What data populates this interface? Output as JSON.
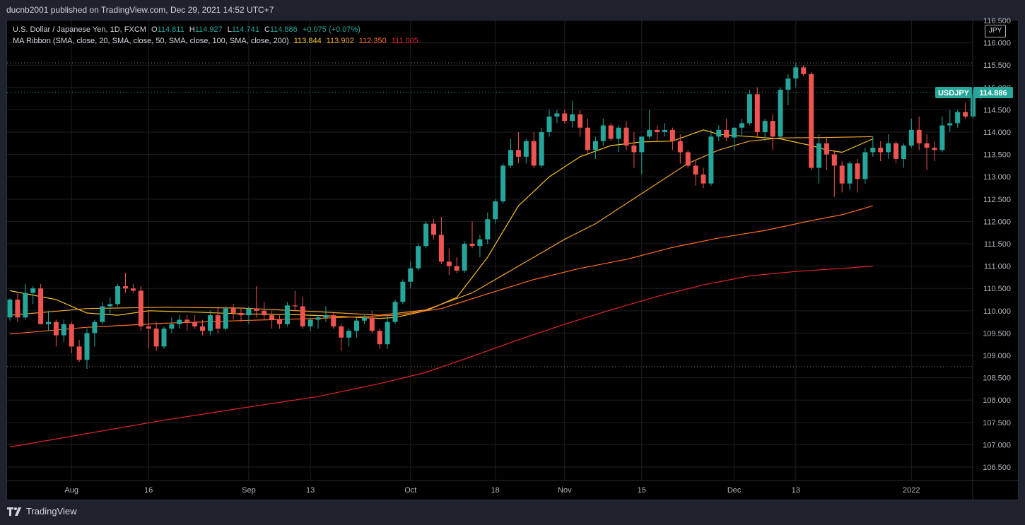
{
  "header": {
    "published": "ducnb2001 published on TradingView.com, Dec 29, 2021 14:52 UTC+7"
  },
  "legend": {
    "symbol_line": "U.S. Dollar / Japanese Yen, 1D, FXCM",
    "o_label": "O",
    "o": "114.811",
    "h_label": "H",
    "h": "114.927",
    "l_label": "L",
    "l": "114.741",
    "c_label": "C",
    "c": "114.886",
    "change": "+0.075 (+0.07%)",
    "ma_label": "MA Ribbon (SMA, close, 20, SMA, close, 50, SMA, close, 100, SMA, close, 200)",
    "ma_values": [
      "113.844",
      "113.902",
      "112.350",
      "111.005"
    ]
  },
  "price_tag": {
    "symbol": "USDJPY",
    "value": "114.886"
  },
  "currency_button": "JPY",
  "footer": {
    "brand": "TradingView"
  },
  "colors": {
    "up": "#26a69a",
    "down": "#ef5350",
    "ma20": "#f7c325",
    "ma50": "#f0a22e",
    "ma100": "#ff6d1f",
    "ma200": "#e3242b",
    "grid": "#1c1f26",
    "axis_text": "#b2b5be",
    "background": "#000000"
  },
  "chart_data": {
    "type": "candlestick",
    "symbol": "USDJPY",
    "timeframe": "1D",
    "ylim": [
      106.2,
      116.5
    ],
    "y_ticks": [
      "106.500",
      "107.000",
      "107.500",
      "108.000",
      "108.500",
      "109.000",
      "109.500",
      "110.000",
      "110.500",
      "111.000",
      "111.500",
      "112.000",
      "112.500",
      "113.000",
      "113.500",
      "114.000",
      "114.500",
      "115.000",
      "115.500",
      "116.000",
      "116.500"
    ],
    "x_ticks": [
      {
        "label": "Aug",
        "index": 8
      },
      {
        "label": "16",
        "index": 18
      },
      {
        "label": "Sep",
        "index": 31
      },
      {
        "label": "13",
        "index": 39
      },
      {
        "label": "Oct",
        "index": 52
      },
      {
        "label": "18",
        "index": 63
      },
      {
        "label": "Nov",
        "index": 72
      },
      {
        "label": "15",
        "index": 82
      },
      {
        "label": "Dec",
        "index": 94
      },
      {
        "label": "13",
        "index": 102
      },
      {
        "label": "2022",
        "index": 117
      }
    ],
    "last_index": 114,
    "candles": [
      [
        109.85,
        110.28,
        109.78,
        110.25
      ],
      [
        110.25,
        110.38,
        109.75,
        109.85
      ],
      [
        109.85,
        110.6,
        109.8,
        110.4
      ],
      [
        110.4,
        110.55,
        110.15,
        110.5
      ],
      [
        110.5,
        110.6,
        109.7,
        109.7
      ],
      [
        109.7,
        110.0,
        109.55,
        109.75
      ],
      [
        109.75,
        109.8,
        109.2,
        109.45
      ],
      [
        109.45,
        109.8,
        109.3,
        109.7
      ],
      [
        109.7,
        109.75,
        109.05,
        109.2
      ],
      [
        109.2,
        109.35,
        108.85,
        108.9
      ],
      [
        108.9,
        109.6,
        108.7,
        109.5
      ],
      [
        109.5,
        109.8,
        109.2,
        109.75
      ],
      [
        109.75,
        110.2,
        109.7,
        110.1
      ],
      [
        110.1,
        110.3,
        109.9,
        110.15
      ],
      [
        110.15,
        110.6,
        110.1,
        110.55
      ],
      [
        110.55,
        110.85,
        110.4,
        110.5
      ],
      [
        110.5,
        110.6,
        110.4,
        110.45
      ],
      [
        110.45,
        110.55,
        109.55,
        109.65
      ],
      [
        109.65,
        110.0,
        109.15,
        109.6
      ],
      [
        109.6,
        109.75,
        109.1,
        109.2
      ],
      [
        109.2,
        109.65,
        109.15,
        109.6
      ],
      [
        109.6,
        109.85,
        109.5,
        109.7
      ],
      [
        109.7,
        109.9,
        109.6,
        109.8
      ],
      [
        109.8,
        109.9,
        109.55,
        109.75
      ],
      [
        109.75,
        109.9,
        109.6,
        109.65
      ],
      [
        109.65,
        109.8,
        109.45,
        109.55
      ],
      [
        109.55,
        110.0,
        109.45,
        109.9
      ],
      [
        109.9,
        110.1,
        109.5,
        109.6
      ],
      [
        109.6,
        110.1,
        109.55,
        110.05
      ],
      [
        110.05,
        110.15,
        109.8,
        109.95
      ],
      [
        109.95,
        110.05,
        109.75,
        109.9
      ],
      [
        109.9,
        110.1,
        109.7,
        110.05
      ],
      [
        110.05,
        110.55,
        109.85,
        110.0
      ],
      [
        110.0,
        110.2,
        109.8,
        109.9
      ],
      [
        109.9,
        110.0,
        109.6,
        109.8
      ],
      [
        109.8,
        109.9,
        109.6,
        109.7
      ],
      [
        109.7,
        110.2,
        109.65,
        110.12
      ],
      [
        110.12,
        110.45,
        110.0,
        110.1
      ],
      [
        110.1,
        110.3,
        109.6,
        109.65
      ],
      [
        109.65,
        109.85,
        109.55,
        109.8
      ],
      [
        109.8,
        109.9,
        109.6,
        109.85
      ],
      [
        109.85,
        110.1,
        109.75,
        109.9
      ],
      [
        109.9,
        109.95,
        109.6,
        109.65
      ],
      [
        109.65,
        109.7,
        109.1,
        109.4
      ],
      [
        109.4,
        109.6,
        109.2,
        109.55
      ],
      [
        109.55,
        109.85,
        109.4,
        109.78
      ],
      [
        109.78,
        109.9,
        109.7,
        109.85
      ],
      [
        109.85,
        110.0,
        109.5,
        109.55
      ],
      [
        109.55,
        109.6,
        109.15,
        109.25
      ],
      [
        109.25,
        109.9,
        109.15,
        109.75
      ],
      [
        109.75,
        110.25,
        109.7,
        110.2
      ],
      [
        110.2,
        110.7,
        110.15,
        110.65
      ],
      [
        110.65,
        111.1,
        110.5,
        110.95
      ],
      [
        110.95,
        111.5,
        110.9,
        111.45
      ],
      [
        111.45,
        112.0,
        111.4,
        111.95
      ],
      [
        111.95,
        112.05,
        111.6,
        111.7
      ],
      [
        111.7,
        112.1,
        111.05,
        111.1
      ],
      [
        111.1,
        111.4,
        110.8,
        111.0
      ],
      [
        111.0,
        111.2,
        110.85,
        110.9
      ],
      [
        110.9,
        111.55,
        110.85,
        111.5
      ],
      [
        111.5,
        112.0,
        111.4,
        111.45
      ],
      [
        111.45,
        111.7,
        111.2,
        111.6
      ],
      [
        111.6,
        112.2,
        111.5,
        112.05
      ],
      [
        112.05,
        112.5,
        111.95,
        112.45
      ],
      [
        112.45,
        113.3,
        112.4,
        113.25
      ],
      [
        113.25,
        113.85,
        113.2,
        113.6
      ],
      [
        113.6,
        114.0,
        113.3,
        113.45
      ],
      [
        113.45,
        113.85,
        113.3,
        113.8
      ],
      [
        113.8,
        114.0,
        113.2,
        113.25
      ],
      [
        113.25,
        114.1,
        113.2,
        114.0
      ],
      [
        114.0,
        114.5,
        113.9,
        114.35
      ],
      [
        114.35,
        114.5,
        114.2,
        114.42
      ],
      [
        114.42,
        114.5,
        114.2,
        114.25
      ],
      [
        114.25,
        114.7,
        114.1,
        114.4
      ],
      [
        114.4,
        114.5,
        113.9,
        114.1
      ],
      [
        114.1,
        114.3,
        113.5,
        113.6
      ],
      [
        113.6,
        113.9,
        113.4,
        113.8
      ],
      [
        113.8,
        114.3,
        113.7,
        114.15
      ],
      [
        114.15,
        114.2,
        113.8,
        113.85
      ],
      [
        113.85,
        114.15,
        113.55,
        114.1
      ],
      [
        114.1,
        114.25,
        113.6,
        113.7
      ]
    ],
    "candles_2": [
      [
        113.7,
        114.0,
        113.2,
        113.55
      ],
      [
        113.55,
        113.8,
        113.05,
        113.9
      ],
      [
        113.9,
        114.5,
        113.85,
        114.05
      ],
      [
        114.05,
        114.15,
        113.8,
        114.0
      ],
      [
        114.0,
        114.2,
        113.9,
        114.05
      ],
      [
        114.05,
        114.1,
        113.6,
        113.8
      ],
      [
        113.8,
        113.95,
        113.3,
        113.55
      ],
      [
        113.55,
        113.6,
        113.2,
        113.25
      ],
      [
        113.25,
        113.35,
        112.8,
        113.05
      ],
      [
        113.05,
        113.2,
        112.75,
        112.85
      ],
      [
        112.85,
        114.05,
        112.8,
        113.9
      ],
      [
        113.9,
        114.15,
        113.8,
        114.05
      ],
      [
        114.05,
        114.3,
        113.8,
        113.88
      ],
      [
        113.88,
        114.1,
        113.6,
        114.1
      ],
      [
        114.1,
        114.3,
        113.9,
        114.2
      ]
    ],
    "candles_3": [
      [
        114.2,
        114.95,
        114.15,
        114.85
      ],
      [
        114.85,
        115.0,
        113.9,
        114.0
      ],
      [
        114.0,
        114.3,
        113.8,
        114.25
      ],
      [
        114.25,
        114.4,
        113.6,
        113.9
      ],
      [
        113.9,
        115.0,
        113.85,
        114.95
      ],
      [
        114.95,
        115.3,
        114.6,
        115.2
      ],
      [
        115.2,
        115.55,
        115.0,
        115.45
      ],
      [
        115.45,
        115.5,
        115.25,
        115.3
      ],
      [
        115.3,
        115.35,
        113.15,
        113.2
      ],
      [
        113.2,
        113.95,
        112.85,
        113.75
      ],
      [
        113.75,
        113.9,
        113.15,
        113.5
      ],
      [
        113.5,
        113.6,
        112.55,
        113.25
      ],
      [
        113.25,
        113.35,
        112.65,
        112.85
      ],
      [
        112.85,
        113.35,
        112.7,
        113.3
      ],
      [
        113.3,
        113.4,
        112.65,
        112.95
      ],
      [
        112.95,
        113.65,
        112.85,
        113.55
      ],
      [
        113.55,
        113.9,
        113.45,
        113.65
      ],
      [
        113.65,
        113.8,
        113.35,
        113.55
      ],
      [
        113.55,
        113.95,
        113.4,
        113.75
      ],
      [
        113.75,
        113.8,
        113.3,
        113.4
      ],
      [
        113.4,
        113.75,
        113.2,
        113.7
      ],
      [
        113.7,
        114.3,
        113.65,
        114.05
      ],
      [
        114.05,
        114.35,
        113.6,
        113.75
      ],
      [
        113.75,
        113.95,
        113.15,
        113.65
      ],
      [
        113.65,
        113.8,
        113.35,
        113.6
      ],
      [
        113.6,
        114.35,
        113.55,
        114.15
      ],
      [
        114.15,
        114.5,
        114.0,
        114.2
      ],
      [
        114.2,
        114.5,
        114.1,
        114.45
      ],
      [
        114.45,
        114.65,
        114.3,
        114.35
      ],
      [
        114.35,
        114.95,
        114.3,
        114.85
      ],
      [
        114.81,
        114.93,
        114.74,
        114.886
      ]
    ],
    "ma": [
      {
        "name": "SMA 20",
        "color_key": "ma20",
        "points": [
          [
            0,
            110.45
          ],
          [
            6,
            110.25
          ],
          [
            10,
            109.95
          ],
          [
            14,
            109.9
          ],
          [
            18,
            110.0
          ],
          [
            24,
            109.97
          ],
          [
            30,
            109.93
          ],
          [
            36,
            109.92
          ],
          [
            42,
            109.88
          ],
          [
            48,
            109.83
          ],
          [
            50,
            109.85
          ],
          [
            54,
            110.0
          ],
          [
            58,
            110.3
          ],
          [
            62,
            111.2
          ],
          [
            66,
            112.35
          ],
          [
            70,
            113.0
          ],
          [
            74,
            113.45
          ],
          [
            78,
            113.7
          ],
          [
            82,
            113.78
          ],
          [
            86,
            113.8
          ],
          [
            90,
            114.05
          ],
          [
            92,
            113.95
          ],
          [
            96,
            113.9
          ],
          [
            100,
            113.85
          ],
          [
            104,
            113.7
          ],
          [
            106,
            113.6
          ],
          [
            108,
            113.55
          ],
          [
            112,
            113.85
          ]
        ]
      },
      {
        "name": "SMA 50",
        "color_key": "ma50",
        "points": [
          [
            0,
            109.9
          ],
          [
            10,
            110.05
          ],
          [
            20,
            110.08
          ],
          [
            30,
            110.06
          ],
          [
            40,
            109.98
          ],
          [
            48,
            109.9
          ],
          [
            54,
            110.02
          ],
          [
            60,
            110.4
          ],
          [
            64,
            110.8
          ],
          [
            68,
            111.2
          ],
          [
            72,
            111.6
          ],
          [
            76,
            111.95
          ],
          [
            80,
            112.4
          ],
          [
            84,
            112.85
          ],
          [
            88,
            113.3
          ],
          [
            92,
            113.6
          ],
          [
            96,
            113.8
          ],
          [
            100,
            113.87
          ],
          [
            106,
            113.88
          ],
          [
            112,
            113.9
          ]
        ]
      },
      {
        "name": "SMA 100",
        "color_key": "ma100",
        "points": [
          [
            0,
            109.48
          ],
          [
            10,
            109.63
          ],
          [
            20,
            109.72
          ],
          [
            30,
            109.78
          ],
          [
            40,
            109.83
          ],
          [
            50,
            109.9
          ],
          [
            56,
            110.05
          ],
          [
            62,
            110.38
          ],
          [
            68,
            110.7
          ],
          [
            74,
            110.95
          ],
          [
            80,
            111.15
          ],
          [
            86,
            111.42
          ],
          [
            92,
            111.63
          ],
          [
            98,
            111.8
          ],
          [
            104,
            112.02
          ],
          [
            108,
            112.15
          ],
          [
            112,
            112.35
          ]
        ]
      },
      {
        "name": "SMA 200",
        "color_key": "ma200",
        "points": [
          [
            0,
            106.95
          ],
          [
            10,
            107.25
          ],
          [
            20,
            107.55
          ],
          [
            30,
            107.82
          ],
          [
            40,
            108.08
          ],
          [
            48,
            108.37
          ],
          [
            54,
            108.62
          ],
          [
            60,
            108.98
          ],
          [
            66,
            109.35
          ],
          [
            72,
            109.7
          ],
          [
            78,
            110.02
          ],
          [
            84,
            110.32
          ],
          [
            90,
            110.58
          ],
          [
            96,
            110.78
          ],
          [
            102,
            110.88
          ],
          [
            108,
            110.95
          ],
          [
            112,
            111.0
          ]
        ]
      }
    ],
    "dotted_levels": [
      115.55,
      114.886,
      108.75
    ]
  }
}
